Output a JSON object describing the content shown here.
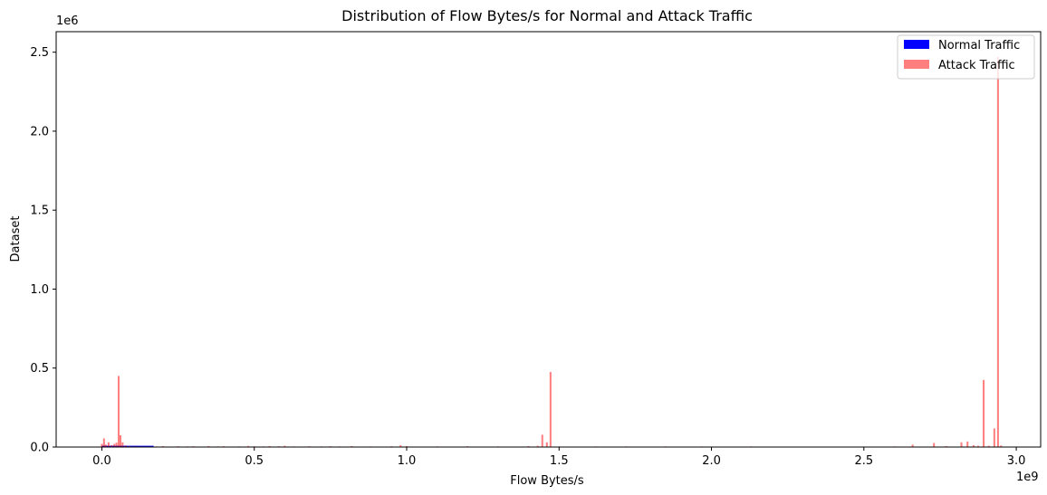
{
  "chart_data": {
    "type": "bar",
    "title": "Distribution of Flow Bytes/s for Normal and Attack Traffic",
    "xlabel": "Flow Bytes/s",
    "ylabel": "Dataset",
    "x_offset_label": "1e9",
    "y_offset_label": "1e6",
    "xlim": [
      -0.15,
      3.08
    ],
    "ylim": [
      0,
      2.63
    ],
    "x_ticks": [
      0.0,
      0.5,
      1.0,
      1.5,
      2.0,
      2.5,
      3.0
    ],
    "x_tick_labels": [
      "0.0",
      "0.5",
      "1.0",
      "1.5",
      "2.0",
      "2.5",
      "3.0"
    ],
    "y_ticks": [
      0.0,
      0.5,
      1.0,
      1.5,
      2.0,
      2.5
    ],
    "y_tick_labels": [
      "0.0",
      "0.5",
      "1.0",
      "1.5",
      "2.0",
      "2.5"
    ],
    "legend_position": "top-right",
    "series": [
      {
        "name": "Normal Traffic",
        "color": "#0000ff",
        "bins": [
          [
            0.0,
            0.17,
            0.008
          ]
        ]
      },
      {
        "name": "Attack Traffic",
        "color": "#ff0000",
        "opacity": 0.5,
        "bin_width": 0.006,
        "bins": [
          [
            0.0,
            0.02
          ],
          [
            0.007,
            0.055
          ],
          [
            0.013,
            0.015
          ],
          [
            0.022,
            0.03
          ],
          [
            0.032,
            0.012
          ],
          [
            0.041,
            0.02
          ],
          [
            0.048,
            0.028
          ],
          [
            0.055,
            0.45
          ],
          [
            0.061,
            0.075
          ],
          [
            0.068,
            0.03
          ],
          [
            0.078,
            0.01
          ],
          [
            0.09,
            0.006
          ],
          [
            0.11,
            0.005
          ],
          [
            0.13,
            0.004
          ],
          [
            0.15,
            0.004
          ],
          [
            0.18,
            0.004
          ],
          [
            0.2,
            0.006
          ],
          [
            0.23,
            0.003
          ],
          [
            0.25,
            0.005
          ],
          [
            0.28,
            0.004
          ],
          [
            0.3,
            0.005
          ],
          [
            0.33,
            0.003
          ],
          [
            0.35,
            0.006
          ],
          [
            0.38,
            0.004
          ],
          [
            0.4,
            0.005
          ],
          [
            0.43,
            0.003
          ],
          [
            0.45,
            0.004
          ],
          [
            0.48,
            0.007
          ],
          [
            0.5,
            0.005
          ],
          [
            0.53,
            0.004
          ],
          [
            0.55,
            0.006
          ],
          [
            0.58,
            0.005
          ],
          [
            0.6,
            0.008
          ],
          [
            0.63,
            0.004
          ],
          [
            0.66,
            0.003
          ],
          [
            0.68,
            0.005
          ],
          [
            0.72,
            0.004
          ],
          [
            0.75,
            0.005
          ],
          [
            0.78,
            0.004
          ],
          [
            0.82,
            0.006
          ],
          [
            0.85,
            0.003
          ],
          [
            0.88,
            0.004
          ],
          [
            0.92,
            0.003
          ],
          [
            0.95,
            0.005
          ],
          [
            0.98,
            0.012
          ],
          [
            1.0,
            0.006
          ],
          [
            1.05,
            0.003
          ],
          [
            1.1,
            0.004
          ],
          [
            1.15,
            0.003
          ],
          [
            1.2,
            0.005
          ],
          [
            1.25,
            0.003
          ],
          [
            1.3,
            0.004
          ],
          [
            1.35,
            0.003
          ],
          [
            1.4,
            0.006
          ],
          [
            1.43,
            0.008
          ],
          [
            1.445,
            0.078
          ],
          [
            1.46,
            0.03
          ],
          [
            1.472,
            0.475
          ],
          [
            1.5,
            0.004
          ],
          [
            1.56,
            0.003
          ],
          [
            1.62,
            0.004
          ],
          [
            1.68,
            0.003
          ],
          [
            1.72,
            0.004
          ],
          [
            1.78,
            0.003
          ],
          [
            1.85,
            0.004
          ],
          [
            1.92,
            0.003
          ],
          [
            1.97,
            0.004
          ],
          [
            2.0,
            0.003
          ],
          [
            2.13,
            0.004
          ],
          [
            2.55,
            0.003
          ],
          [
            2.6,
            0.004
          ],
          [
            2.66,
            0.015
          ],
          [
            2.73,
            0.026
          ],
          [
            2.77,
            0.006
          ],
          [
            2.82,
            0.03
          ],
          [
            2.84,
            0.035
          ],
          [
            2.86,
            0.012
          ],
          [
            2.875,
            0.008
          ],
          [
            2.893,
            0.425
          ],
          [
            2.91,
            0.008
          ],
          [
            2.928,
            0.118
          ],
          [
            2.94,
            2.47
          ],
          [
            2.95,
            0.01
          ]
        ]
      }
    ]
  }
}
